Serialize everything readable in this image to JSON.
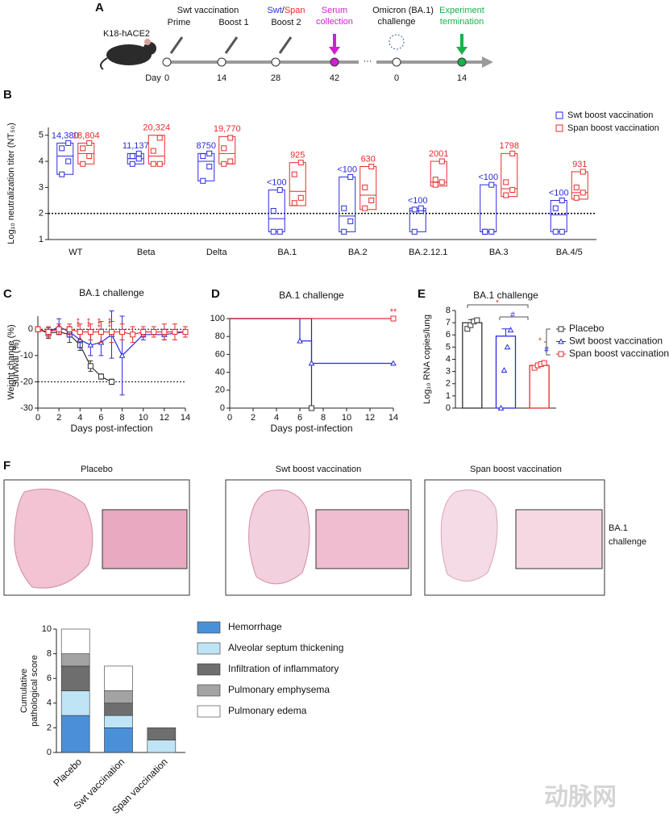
{
  "panel_labels": [
    "A",
    "B",
    "C",
    "D",
    "E",
    "F"
  ],
  "timeline": {
    "mouse": "K18-hACE2",
    "vaccination": "Swt vaccination",
    "steps": [
      "Prime",
      "Boost 1",
      "Boost 2"
    ],
    "boost2_vaccine": [
      "Swt",
      "/",
      "Span"
    ],
    "serum": [
      "Serum",
      "collection"
    ],
    "challenge": [
      "Omicron (BA.1)",
      "challenge"
    ],
    "termination": [
      "Experiment",
      "termination"
    ],
    "day_label": "Day",
    "days": [
      0,
      14,
      28,
      42,
      0,
      14
    ]
  },
  "histology": {
    "titles": [
      "Placebo",
      "Swt boost vaccination",
      "Span boost vaccination"
    ],
    "side_label": [
      "BA.1",
      "challenge"
    ]
  },
  "watermark": "动脉网",
  "chart_data": [
    {
      "type": "box",
      "ylabel": "Log₁₀ neutralization titer (NT₅₀)",
      "categories": [
        "WT",
        "Beta",
        "Delta",
        "BA.1",
        "BA.2",
        "BA.2.12.1",
        "BA.3",
        "BA.4/5"
      ],
      "ylim": [
        1,
        5.3
      ],
      "yticks": [
        1,
        2,
        3,
        4,
        5
      ],
      "hline": 2,
      "legend": "upper right",
      "series": [
        {
          "name": "Swt boost vaccination",
          "color": "#2a2ae0",
          "low": [
            3.5,
            3.9,
            3.25,
            1.3,
            1.3,
            1.3,
            1.3,
            1.3
          ],
          "mid": [
            4.2,
            4.1,
            4.0,
            1.8,
            1.9,
            2.1,
            1.3,
            1.95
          ],
          "high": [
            4.7,
            4.3,
            4.3,
            2.9,
            3.4,
            2.2,
            3.1,
            2.5
          ],
          "points": [
            [
              3.5,
              4.0,
              4.5,
              4.7
            ],
            [
              3.9,
              4.1,
              4.2,
              4.3
            ],
            [
              3.25,
              3.8,
              4.2,
              4.3
            ],
            [
              1.3,
              1.3,
              2.1,
              2.9
            ],
            [
              1.3,
              1.7,
              2.2,
              3.4
            ],
            [
              1.3,
              2.1,
              2.15,
              2.2
            ],
            [
              1.3,
              1.3,
              1.3,
              3.1
            ],
            [
              1.3,
              1.3,
              2.2,
              2.5
            ]
          ],
          "gmt_labels": [
            "14,380",
            "11,137",
            "8750",
            "<100",
            "<100",
            "<100",
            "<100",
            "<100"
          ]
        },
        {
          "name": "Span boost vaccination",
          "color": "#e82a2a",
          "low": [
            3.9,
            3.9,
            3.9,
            2.3,
            2.15,
            3.05,
            2.65,
            2.55
          ],
          "mid": [
            4.3,
            4.2,
            4.3,
            2.85,
            2.7,
            3.2,
            2.95,
            2.8
          ],
          "high": [
            4.7,
            5.0,
            4.95,
            3.95,
            3.8,
            4.0,
            4.3,
            3.6
          ],
          "points": [
            [
              3.9,
              4.2,
              4.5,
              4.7
            ],
            [
              3.9,
              3.9,
              4.4,
              4.9
            ],
            [
              3.9,
              4.0,
              4.5,
              4.9
            ],
            [
              2.4,
              2.6,
              3.5,
              3.95
            ],
            [
              2.2,
              2.5,
              3.0,
              3.8
            ],
            [
              3.1,
              3.2,
              3.3,
              4.0
            ],
            [
              2.7,
              2.9,
              3.2,
              4.3
            ],
            [
              2.6,
              2.8,
              3.0,
              3.6
            ]
          ],
          "gmt_labels": [
            "18,804",
            "20,324",
            "19,770",
            "925",
            "630",
            "2001",
            "1798",
            "931"
          ]
        }
      ]
    },
    {
      "type": "line",
      "title": "BA.1 challenge",
      "xlabel": "Days post-infection",
      "ylabel": "Weight change (%)",
      "xlim": [
        0,
        14
      ],
      "xticks": [
        0,
        2,
        4,
        6,
        8,
        10,
        12,
        14
      ],
      "ylim": [
        -30,
        5
      ],
      "yticks": [
        -30,
        -20,
        -10,
        0
      ],
      "hlines": [
        0,
        -20
      ],
      "significance": [
        "***",
        "***",
        "***",
        "***"
      ],
      "significance_x": [
        4,
        5,
        6,
        7
      ],
      "significance_color": "#e82a2a",
      "series": [
        {
          "name": "Placebo",
          "color": "#333333",
          "marker": "square",
          "x": [
            0,
            1,
            2,
            3,
            4,
            5,
            6,
            7
          ],
          "values": [
            0,
            -1.5,
            -1,
            -2,
            -6,
            -14,
            -18,
            -20
          ],
          "errors": [
            1,
            2,
            1,
            3,
            2,
            2,
            1,
            1
          ]
        },
        {
          "name": "Swt boost vaccination",
          "color": "#2a2ae0",
          "marker": "triangle",
          "x": [
            0,
            1,
            2,
            3,
            4,
            5,
            6,
            7,
            8,
            10,
            12,
            14
          ],
          "values": [
            0,
            -1,
            1,
            -1,
            -4,
            -6,
            -5,
            -2,
            -10,
            -2,
            -2,
            -1
          ],
          "errors": [
            1,
            2,
            3,
            2,
            3,
            4,
            5,
            9,
            15,
            2,
            2,
            2
          ]
        },
        {
          "name": "Span boost vaccination",
          "color": "#e82a2a",
          "marker": "square",
          "x": [
            0,
            1,
            2,
            3,
            4,
            5,
            6,
            7,
            8,
            9,
            10,
            11,
            12,
            13,
            14
          ],
          "values": [
            0,
            -1,
            0,
            0,
            -1,
            -1,
            -1,
            -1,
            -1,
            -2,
            -1,
            -1,
            -1,
            -1,
            -1
          ],
          "errors": [
            1,
            2,
            2,
            2,
            3,
            3,
            4,
            4,
            3,
            3,
            2,
            2,
            3,
            3,
            2
          ]
        }
      ]
    },
    {
      "type": "step",
      "title": "BA.1 challenge",
      "xlabel": "Days post-infection",
      "ylabel": "Survival (%)",
      "xlim": [
        0,
        14
      ],
      "xticks": [
        0,
        2,
        4,
        6,
        8,
        10,
        12,
        14
      ],
      "ylim": [
        0,
        100
      ],
      "yticks": [
        0,
        20,
        40,
        60,
        80,
        100
      ],
      "annotation": "**",
      "annotation_color": "#e82a2a",
      "series": [
        {
          "name": "Placebo",
          "color": "#333333",
          "marker": "square",
          "x": [
            0,
            7
          ],
          "values": [
            100,
            0
          ]
        },
        {
          "name": "Swt boost vaccination",
          "color": "#2a2ae0",
          "marker": "triangle",
          "x": [
            0,
            6,
            7,
            14
          ],
          "values": [
            100,
            75,
            50,
            50
          ]
        },
        {
          "name": "Span boost vaccination",
          "color": "#e82a2a",
          "marker": "square",
          "x": [
            0,
            14
          ],
          "values": [
            100,
            100
          ]
        }
      ]
    },
    {
      "type": "bar",
      "title": "BA.1 challenge",
      "ylabel": "Log₁₀ RNA copies/lung",
      "ylim": [
        0,
        8
      ],
      "yticks": [
        0,
        1,
        2,
        3,
        4,
        5,
        6,
        7,
        8
      ],
      "legend": "right",
      "annotations": [
        "*",
        "#",
        "*",
        "#"
      ],
      "annotation_colors": [
        "#e82a2a",
        "#2a2ae0",
        "#e82a2a",
        "#2a2ae0"
      ],
      "series": [
        {
          "name": "Placebo",
          "color": "#333333",
          "marker": "square",
          "values": [
            7.0
          ],
          "errors": [
            0.25
          ],
          "points": [
            [
              6.5,
              6.8,
              7.1,
              7.2
            ]
          ]
        },
        {
          "name": "Swt boost vaccination",
          "color": "#2a2ae0",
          "marker": "triangle",
          "values": [
            5.9
          ],
          "errors": [
            0.6
          ],
          "points": [
            [
              0,
              3.1,
              5.0,
              6.4
            ]
          ]
        },
        {
          "name": "Span boost vaccination",
          "color": "#e82a2a",
          "marker": "square",
          "values": [
            3.5
          ],
          "errors": [
            0.1
          ],
          "points": [
            [
              3.3,
              3.5,
              3.6,
              3.7
            ]
          ]
        }
      ]
    },
    {
      "type": "stacked_bar",
      "ylabel": [
        "Cumulative",
        "pathological score"
      ],
      "categories": [
        "Placebo",
        "Swt vaccination",
        "Span vaccination"
      ],
      "ylim": [
        0,
        10
      ],
      "yticks": [
        0,
        2,
        4,
        6,
        8,
        10
      ],
      "series": [
        {
          "name": "Hemorrhage",
          "color": "#4a90d9",
          "values": [
            3,
            2,
            0
          ]
        },
        {
          "name": "Alveolar septum thickening",
          "color": "#bfe4f6",
          "values": [
            2,
            1,
            1
          ]
        },
        {
          "name": "Infiltration of inflammatory",
          "color": "#6e6e6e",
          "values": [
            2,
            1,
            1
          ]
        },
        {
          "name": "Pulmonary emphysema",
          "color": "#a3a3a3",
          "values": [
            1,
            1,
            0
          ]
        },
        {
          "name": "Pulmonary edema",
          "color": "#ffffff",
          "values": [
            2,
            2,
            0
          ]
        }
      ]
    }
  ]
}
